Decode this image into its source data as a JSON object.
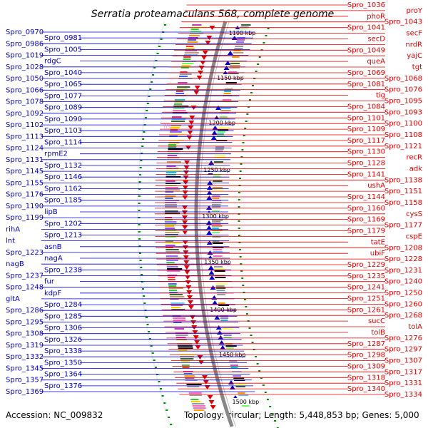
{
  "header": {
    "title": "Serratia proteamaculans 568, complete genome"
  },
  "footer": {
    "accession": "Accession: NC_009832",
    "topology": "Topology: circular; Length: 5,448,853 bp; Genes: 5,000"
  },
  "colors": {
    "minus_strand": "#0000cc",
    "plus_strand": "#dd0000",
    "backbone": "#888888",
    "tick": "#008800"
  },
  "kbp_labels": [
    "1100 kbp",
    "1150 kbp",
    "1200 kbp",
    "1250 kbp",
    "1300 kbp",
    "1350 kbp",
    "1400 kbp",
    "1450 kbp",
    "1500 kbp"
  ],
  "left_labels": [
    "Spro_0970",
    "Spro_0981",
    "Spro_0986",
    "Spro_1005",
    "Spro_1019",
    "rdgC",
    "Spro_1028",
    "Spro_1040",
    "Spro_1050",
    "Spro_1065",
    "Spro_1066",
    "Spro_1077",
    "Spro_1078",
    "Spro_1089",
    "Spro_1092",
    "Spro_1090",
    "Spro_1102",
    "Spro_1103",
    "Spro_1113",
    "Spro_1114",
    "Spro_1124",
    "rpmE2",
    "Spro_1131",
    "Spro_1132",
    "Spro_1145",
    "Spro_1146",
    "Spro_1155",
    "Spro_1162",
    "Spro_1176",
    "Spro_1185",
    "Spro_1190",
    "lipB",
    "Spro_1199",
    "Spro_1202",
    "rihA",
    "Spro_1213",
    "lnt",
    "asnB",
    "Spro_1223",
    "nagA",
    "nagB",
    "Spro_1238",
    "Spro_1237",
    "fur",
    "Spro_1248",
    "kdpF",
    "gltA",
    "Spro_1284",
    "Spro_1286",
    "Spro_1285",
    "Spro_1295",
    "Spro_1306",
    "Spro_1308",
    "Spro_1326",
    "Spro_1319",
    "Spro_1338",
    "Spro_1332",
    "Spro_1350",
    "Spro_1345",
    "Spro_1364",
    "Spro_1357",
    "Spro_1376",
    "Spro_1369"
  ],
  "right_labels": [
    "Spro_1036",
    "proY",
    "phoR",
    "Spro_1043",
    "Spro_1041",
    "secF",
    "secD",
    "nrdR",
    "Spro_1049",
    "yajC",
    "queA",
    "tgt",
    "Spro_1069",
    "Spro_1068",
    "Spro_1081",
    "Spro_1076",
    "tig",
    "Spro_1095",
    "Spro_1084",
    "Spro_1093",
    "Spro_1101",
    "Spro_1100",
    "Spro_1109",
    "Spro_1108",
    "Spro_1117",
    "Spro_1121",
    "Spro_1130",
    "recR",
    "Spro_1128",
    "adk",
    "Spro_1141",
    "Spro_1138",
    "ushA",
    "Spro_1151",
    "Spro_1144",
    "Spro_1158",
    "Spro_1160",
    "cysS",
    "Spro_1169",
    "Spro_1177",
    "Spro_1179",
    "cspE",
    "tatE",
    "Spro_1208",
    "ubiF",
    "Spro_1228",
    "Spro_1229",
    "Spro_1231",
    "Spro_1235",
    "Spro_1240",
    "Spro_1241",
    "Spro_1250",
    "Spro_1251",
    "Spro_1260",
    "Spro_1261",
    "Spro_1268",
    "sucC",
    "tolA",
    "tolB",
    "Spro_1276",
    "Spro_1287",
    "Spro_1297",
    "Spro_1298",
    "Spro_1307",
    "Spro_1309",
    "Spro_1317",
    "Spro_1318",
    "Spro_1331",
    "Spro_1340",
    "Spro_1334"
  ],
  "center_labels": [
    "ffs"
  ]
}
